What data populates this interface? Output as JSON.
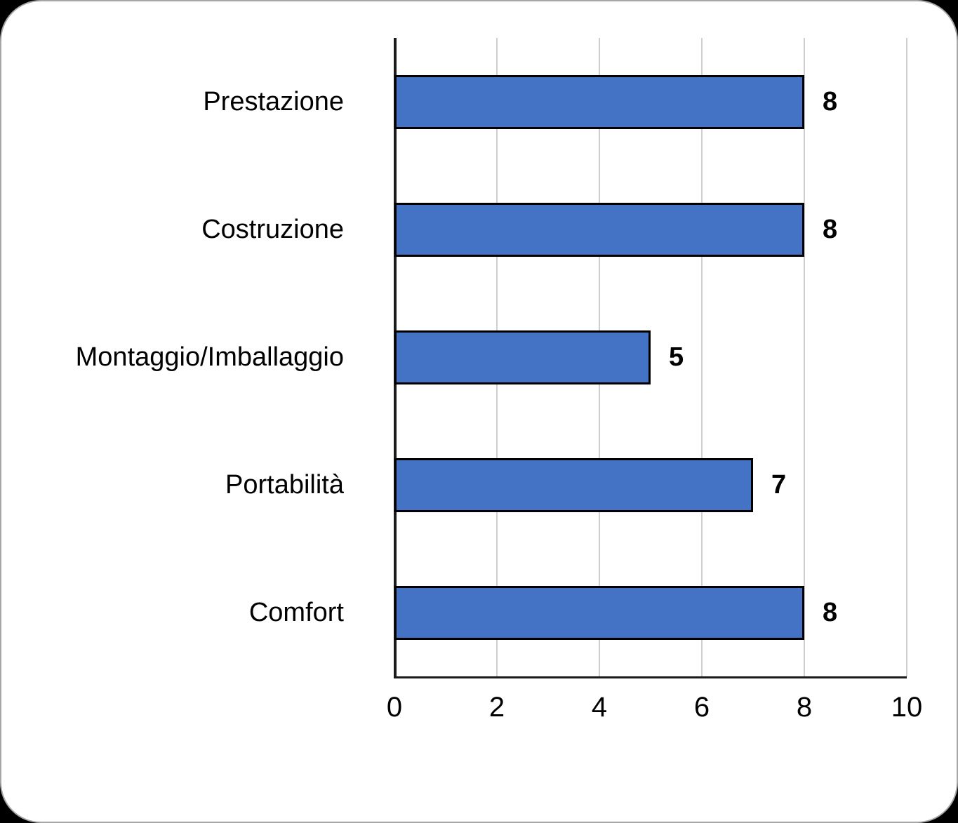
{
  "chart_data": {
    "type": "bar",
    "orientation": "horizontal",
    "title": "",
    "categories": [
      "Prestazione",
      "Costruzione",
      "Montaggio/Imballaggio",
      "Portabilità",
      "Comfort"
    ],
    "values": [
      8,
      8,
      5,
      7,
      8
    ],
    "data_labels": [
      "8",
      "8",
      "5",
      "7",
      "8"
    ],
    "xlim": [
      0,
      10
    ],
    "x_ticks": [
      0,
      2,
      4,
      6,
      8,
      10
    ],
    "x_tick_labels": [
      "0",
      "2",
      "4",
      "6",
      "8",
      "10"
    ],
    "grid": true,
    "legend": false,
    "colors": {
      "bar_fill": "#4472C4",
      "bar_border": "#000000",
      "gridline": "#CFCFCF",
      "axis_line": "#1A1A1A",
      "text": "#000000",
      "plot_background": "#FFFFFF",
      "card_background": "#FFFFFF",
      "page_background": "#000000"
    }
  }
}
